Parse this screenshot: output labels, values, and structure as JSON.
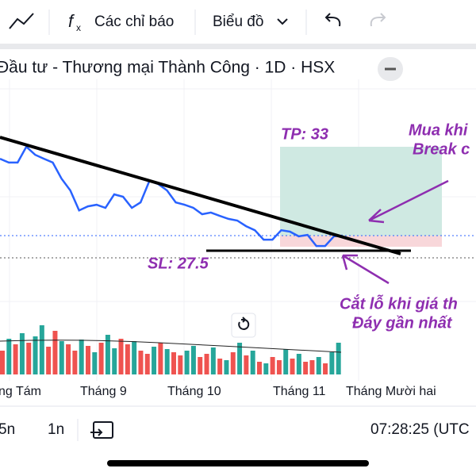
{
  "toolbar": {
    "indicators": "Các chỉ báo",
    "chart_type": "Biểu đồ"
  },
  "title": "Đầu tư - Thương mại Thành Công · 1D · HSX",
  "annotations": {
    "tp": "TP: 33",
    "sl": "SL: 27.5",
    "buy_1": "Mua khi",
    "buy_2": "Break c",
    "stop_1": "Cắt lỗ khi giá th",
    "stop_2": "Đáy gần nhất"
  },
  "months": [
    "ng Tám",
    "Tháng 9",
    "Tháng 10",
    "Tháng 11",
    "Tháng Mười hai"
  ],
  "bottom_bar": {
    "ranges": [
      "5n",
      "1n"
    ],
    "time": "07:28:25 (UTC"
  },
  "chart": {
    "prices": [
      32.34,
      32.13,
      32.13,
      33.0,
      32.56,
      32.34,
      32.13,
      31.25,
      30.6,
      29.5,
      29.72,
      29.81,
      29.64,
      30.38,
      30.25,
      29.64,
      29.94,
      31.12,
      30.95,
      30.6,
      29.94,
      29.81,
      29.64,
      29.29,
      29.38,
      29.2,
      29.03,
      28.94,
      28.63,
      28.41,
      27.89,
      27.89,
      28.41,
      28.33,
      28.07,
      28.15,
      27.54,
      27.54,
      28.07,
      28.11
    ],
    "price_color": "#2962ff",
    "volumes": [
      30,
      45,
      38,
      52,
      40,
      48,
      62,
      35,
      55,
      42,
      38,
      30,
      44,
      36,
      28,
      40,
      50,
      33,
      45,
      38,
      42,
      30,
      26,
      35,
      40,
      32,
      28,
      24,
      30,
      36,
      22,
      26,
      34,
      20,
      18,
      28,
      40,
      24,
      30,
      16,
      14,
      22,
      18,
      32,
      20,
      26,
      16,
      18,
      22,
      14,
      28,
      40
    ],
    "volume_colors": [
      "#ef5350",
      "#26a69a",
      "#ef5350",
      "#26a69a",
      "#ef5350",
      "#26a69a",
      "#26a69a",
      "#ef5350",
      "#ef5350",
      "#26a69a",
      "#ef5350",
      "#ef5350",
      "#26a69a",
      "#ef5350",
      "#26a69a",
      "#ef5350",
      "#26a69a",
      "#26a69a",
      "#ef5350",
      "#ef5350",
      "#26a69a",
      "#ef5350",
      "#ef5350",
      "#26a69a",
      "#ef5350",
      "#26a69a",
      "#ef5350",
      "#ef5350",
      "#26a69a",
      "#26a69a",
      "#ef5350",
      "#ef5350",
      "#26a69a",
      "#ef5350",
      "#26a69a",
      "#ef5350",
      "#26a69a",
      "#ef5350",
      "#26a69a",
      "#ef5350",
      "#26a69a",
      "#ef5350",
      "#ef5350",
      "#26a69a",
      "#ef5350",
      "#26a69a",
      "#ef5350",
      "#ef5350",
      "#26a69a",
      "#ef5350",
      "#26a69a",
      "#26a69a"
    ]
  }
}
